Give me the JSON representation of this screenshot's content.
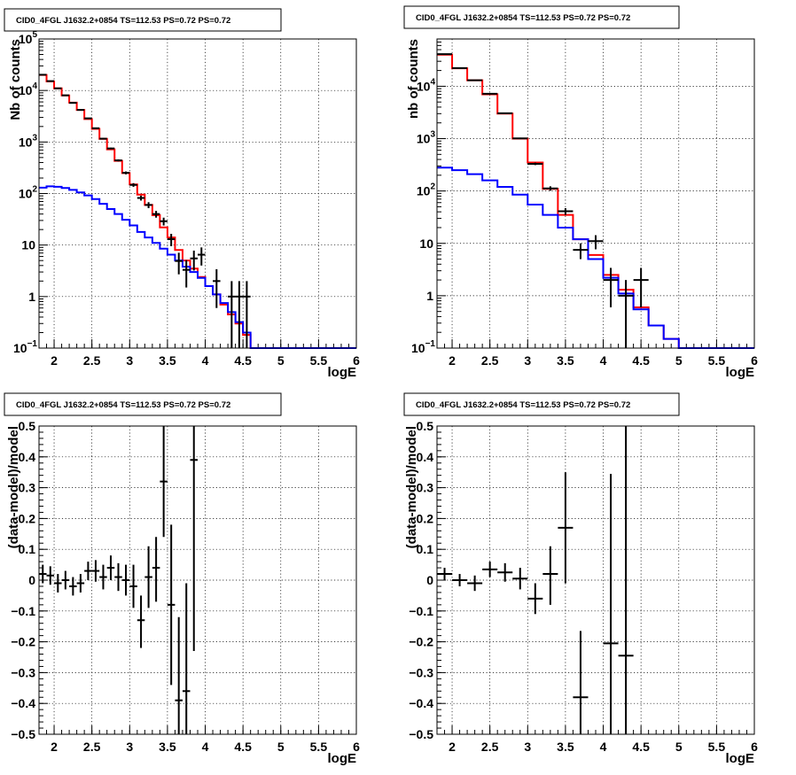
{
  "chart_data": [
    {
      "type": "line",
      "title": "CID0_4FGL J1632.2+0854 TS=112.53 PS=0.72 PS=0.72",
      "xlabel": "logE",
      "ylabel": "Nb of counts",
      "xlim": [
        1.8,
        6
      ],
      "ylim": [
        0.1,
        100000
      ],
      "yscale": "log",
      "grid": true,
      "x_ticks": [
        "2",
        "2.5",
        "3",
        "3.5",
        "4",
        "4.5",
        "5",
        "5.5",
        "6"
      ],
      "y_ticks": [
        "10^-1",
        "1",
        "10",
        "10^2",
        "10^3",
        "10^4",
        "10^5"
      ],
      "bin_width": 0.1,
      "x": [
        1.85,
        1.95,
        2.05,
        2.15,
        2.25,
        2.35,
        2.45,
        2.55,
        2.65,
        2.75,
        2.85,
        2.95,
        3.05,
        3.15,
        3.25,
        3.35,
        3.45,
        3.55,
        3.65,
        3.75,
        3.85,
        3.95,
        4.05,
        4.15,
        4.25,
        4.35,
        4.45,
        4.55,
        4.65,
        4.75,
        4.85,
        4.95,
        5.05,
        5.15,
        5.25,
        5.35,
        5.45,
        5.55,
        5.65,
        5.75,
        5.85,
        5.95
      ],
      "series": [
        {
          "color": "#ff0000",
          "values": [
            20000,
            15000,
            11000,
            8000,
            5800,
            4200,
            2800,
            1800,
            1150,
            720,
            430,
            250,
            150,
            95,
            60,
            38,
            22,
            14,
            8,
            5,
            3.5,
            2.4,
            1.6,
            1.1,
            0.7,
            0.45,
            0.3,
            0.18,
            0.1,
            0.1,
            0.1,
            0.1,
            0.1,
            0.1,
            0.1,
            0.1,
            0.1,
            0.1,
            0.1,
            0.1,
            0.1,
            0.1
          ]
        },
        {
          "color": "#0000ff",
          "values": [
            130,
            138,
            135,
            128,
            118,
            105,
            92,
            78,
            63,
            50,
            40,
            31,
            24,
            18,
            14,
            11,
            8.5,
            6.5,
            5,
            3.8,
            3,
            2.3,
            1.6,
            1.1,
            0.75,
            0.5,
            0.32,
            0.2,
            0.1,
            0.1,
            0.1,
            0.1,
            0.1,
            0.1,
            0.1,
            0.1,
            0.1,
            0.1,
            0.1,
            0.1,
            0.1,
            0.1
          ]
        }
      ],
      "points": [
        {
          "x": 1.85,
          "y": 20200,
          "lo": 20060,
          "hi": 20340
        },
        {
          "x": 1.95,
          "y": 15200,
          "lo": 15080,
          "hi": 15320
        },
        {
          "x": 2.05,
          "y": 11000,
          "lo": 10900,
          "hi": 11100
        },
        {
          "x": 2.15,
          "y": 8050,
          "lo": 7960,
          "hi": 8140
        },
        {
          "x": 2.25,
          "y": 5750,
          "lo": 5675,
          "hi": 5825
        },
        {
          "x": 2.35,
          "y": 4200,
          "lo": 4135,
          "hi": 4265
        },
        {
          "x": 2.45,
          "y": 2880,
          "lo": 2826,
          "hi": 2934
        },
        {
          "x": 2.55,
          "y": 1850,
          "lo": 1807,
          "hi": 1893
        },
        {
          "x": 2.65,
          "y": 1160,
          "lo": 1126,
          "hi": 1194
        },
        {
          "x": 2.75,
          "y": 750,
          "lo": 723,
          "hi": 777
        },
        {
          "x": 2.85,
          "y": 440,
          "lo": 419,
          "hi": 461
        },
        {
          "x": 2.95,
          "y": 252,
          "lo": 236,
          "hi": 268
        },
        {
          "x": 3.05,
          "y": 147,
          "lo": 135,
          "hi": 159
        },
        {
          "x": 3.15,
          "y": 82,
          "lo": 73,
          "hi": 91
        },
        {
          "x": 3.25,
          "y": 60,
          "lo": 52,
          "hi": 68
        },
        {
          "x": 3.35,
          "y": 40,
          "lo": 34,
          "hi": 46
        },
        {
          "x": 3.45,
          "y": 29,
          "lo": 24,
          "hi": 34
        },
        {
          "x": 3.55,
          "y": 13,
          "lo": 9.5,
          "hi": 16.5
        },
        {
          "x": 3.65,
          "y": 4.9,
          "lo": 2.7,
          "hi": 7.1
        },
        {
          "x": 3.75,
          "y": 3.3,
          "lo": 1.5,
          "hi": 5.1
        },
        {
          "x": 3.85,
          "y": 5.5,
          "lo": 3.2,
          "hi": 7.8
        },
        {
          "x": 3.95,
          "y": 6.5,
          "lo": 4.0,
          "hi": 9.0
        },
        {
          "x": 4.15,
          "y": 2.0,
          "lo": 0.6,
          "hi": 3.4
        },
        {
          "x": 4.35,
          "y": 1.0,
          "lo": 0.1,
          "hi": 2.0
        },
        {
          "x": 4.45,
          "y": 1.0,
          "lo": 0.1,
          "hi": 2.0
        },
        {
          "x": 4.55,
          "y": 1.0,
          "lo": 0.1,
          "hi": 2.0
        }
      ]
    },
    {
      "type": "line",
      "title": "CID0_4FGL J1632.2+0854 TS=112.53 PS=0.72 PS=0.72",
      "xlabel": "logE",
      "ylabel": "nb of counts",
      "xlim": [
        1.8,
        6
      ],
      "ylim": [
        0.1,
        80000
      ],
      "yscale": "log",
      "grid": true,
      "x_ticks": [
        "2",
        "2.5",
        "3",
        "3.5",
        "4",
        "4.5",
        "5",
        "5.5",
        "6"
      ],
      "y_ticks": [
        "10^-1",
        "1",
        "10",
        "10^2",
        "10^3",
        "10^4"
      ],
      "bin_width": 0.2,
      "x": [
        1.9,
        2.1,
        2.3,
        2.5,
        2.7,
        2.9,
        3.1,
        3.3,
        3.5,
        3.7,
        3.9,
        4.1,
        4.3,
        4.5,
        4.7,
        4.9,
        5.1,
        5.3,
        5.5,
        5.7,
        5.9
      ],
      "series": [
        {
          "color": "#ff0000",
          "values": [
            40000,
            22000,
            13000,
            7000,
            3000,
            1000,
            350,
            110,
            35,
            12,
            6,
            2.5,
            1.3,
            0.6,
            0.27,
            0.15,
            0.1,
            0.1,
            0.1,
            0.1,
            0.1
          ]
        },
        {
          "color": "#0000ff",
          "values": [
            280,
            250,
            210,
            160,
            120,
            85,
            55,
            35,
            20,
            12,
            5,
            2.2,
            1.1,
            0.55,
            0.27,
            0.15,
            0.1,
            0.1,
            0.1,
            0.1,
            0.1
          ]
        }
      ],
      "points": [
        {
          "x": 1.9,
          "y": 41000,
          "lo": 40800,
          "hi": 41200
        },
        {
          "x": 2.1,
          "y": 22200,
          "lo": 22050,
          "hi": 22350
        },
        {
          "x": 2.3,
          "y": 13000,
          "lo": 12890,
          "hi": 13110
        },
        {
          "x": 2.5,
          "y": 7200,
          "lo": 7115,
          "hi": 7285
        },
        {
          "x": 2.7,
          "y": 3050,
          "lo": 2995,
          "hi": 3105
        },
        {
          "x": 2.9,
          "y": 1010,
          "lo": 978,
          "hi": 1042
        },
        {
          "x": 3.1,
          "y": 330,
          "lo": 312,
          "hi": 348
        },
        {
          "x": 3.3,
          "y": 112,
          "lo": 101,
          "hi": 123
        },
        {
          "x": 3.5,
          "y": 41,
          "lo": 35,
          "hi": 47
        },
        {
          "x": 3.7,
          "y": 7.5,
          "lo": 5,
          "hi": 10
        },
        {
          "x": 3.9,
          "y": 11,
          "lo": 7.7,
          "hi": 14.3
        },
        {
          "x": 4.1,
          "y": 2.0,
          "lo": 0.6,
          "hi": 3.4
        },
        {
          "x": 4.3,
          "y": 1.0,
          "lo": 0.1,
          "hi": 2.0
        },
        {
          "x": 4.5,
          "y": 2.0,
          "lo": 0.6,
          "hi": 3.4
        }
      ]
    },
    {
      "type": "scatter",
      "title": "CID0_4FGL J1632.2+0854 TS=112.53 PS=0.72 PS=0.72",
      "xlabel": "logE",
      "ylabel": "(data-model)/model",
      "xlim": [
        1.8,
        6
      ],
      "ylim": [
        -0.5,
        0.5
      ],
      "grid": true,
      "x_ticks": [
        "2",
        "2.5",
        "3",
        "3.5",
        "4",
        "4.5",
        "5",
        "5.5",
        "6"
      ],
      "y_ticks": [
        "-0.5",
        "-0.4",
        "-0.3",
        "-0.2",
        "-0.1",
        "0",
        "0.1",
        "0.2",
        "0.3",
        "0.4",
        "0.5"
      ],
      "bin_width": 0.1,
      "points": [
        {
          "x": 1.85,
          "y": 0.02,
          "lo": -0.01,
          "hi": 0.05
        },
        {
          "x": 1.95,
          "y": 0.015,
          "lo": -0.015,
          "hi": 0.045
        },
        {
          "x": 2.05,
          "y": -0.01,
          "lo": -0.04,
          "hi": 0.02
        },
        {
          "x": 2.15,
          "y": 0.0,
          "lo": -0.03,
          "hi": 0.03
        },
        {
          "x": 2.25,
          "y": -0.02,
          "lo": -0.05,
          "hi": 0.01
        },
        {
          "x": 2.35,
          "y": -0.01,
          "lo": -0.04,
          "hi": 0.02
        },
        {
          "x": 2.45,
          "y": 0.03,
          "lo": 0.0,
          "hi": 0.06
        },
        {
          "x": 2.55,
          "y": 0.03,
          "lo": -0.005,
          "hi": 0.065
        },
        {
          "x": 2.65,
          "y": 0.01,
          "lo": -0.03,
          "hi": 0.05
        },
        {
          "x": 2.75,
          "y": 0.04,
          "lo": 0.0,
          "hi": 0.08
        },
        {
          "x": 2.85,
          "y": 0.01,
          "lo": -0.035,
          "hi": 0.055
        },
        {
          "x": 2.95,
          "y": 0.0,
          "lo": -0.05,
          "hi": 0.05
        },
        {
          "x": 3.05,
          "y": -0.02,
          "lo": -0.09,
          "hi": 0.05
        },
        {
          "x": 3.15,
          "y": -0.13,
          "lo": -0.22,
          "hi": -0.05
        },
        {
          "x": 3.25,
          "y": 0.01,
          "lo": -0.09,
          "hi": 0.11
        },
        {
          "x": 3.35,
          "y": 0.04,
          "lo": -0.07,
          "hi": 0.14
        },
        {
          "x": 3.45,
          "y": 0.32,
          "lo": 0.14,
          "hi": 0.5
        },
        {
          "x": 3.55,
          "y": -0.08,
          "lo": -0.34,
          "hi": 0.18
        },
        {
          "x": 3.65,
          "y": -0.39,
          "lo": -0.5,
          "hi": -0.12
        },
        {
          "x": 3.75,
          "y": -0.36,
          "lo": -0.5,
          "hi": -0.01
        },
        {
          "x": 3.85,
          "y": 0.39,
          "lo": -0.23,
          "hi": 0.5
        }
      ]
    },
    {
      "type": "scatter",
      "title": "CID0_4FGL J1632.2+0854 TS=112.53 PS=0.72 PS=0.72",
      "xlabel": "logE",
      "ylabel": "(data-model)/model",
      "xlim": [
        1.8,
        6
      ],
      "ylim": [
        -0.5,
        0.5
      ],
      "grid": true,
      "x_ticks": [
        "2",
        "2.5",
        "3",
        "3.5",
        "4",
        "4.5",
        "5",
        "5.5",
        "6"
      ],
      "y_ticks": [
        "-0.5",
        "-0.4",
        "-0.3",
        "-0.2",
        "-0.1",
        "0",
        "0.1",
        "0.2",
        "0.3",
        "0.4",
        "0.5"
      ],
      "bin_width": 0.2,
      "points": [
        {
          "x": 1.9,
          "y": 0.02,
          "lo": 0.0,
          "hi": 0.04
        },
        {
          "x": 2.1,
          "y": 0.0,
          "lo": -0.02,
          "hi": 0.02
        },
        {
          "x": 2.3,
          "y": -0.01,
          "lo": -0.035,
          "hi": 0.015
        },
        {
          "x": 2.5,
          "y": 0.035,
          "lo": 0.01,
          "hi": 0.06
        },
        {
          "x": 2.7,
          "y": 0.025,
          "lo": -0.005,
          "hi": 0.055
        },
        {
          "x": 2.9,
          "y": 0.005,
          "lo": -0.03,
          "hi": 0.04
        },
        {
          "x": 3.1,
          "y": -0.06,
          "lo": -0.11,
          "hi": -0.01
        },
        {
          "x": 3.3,
          "y": 0.02,
          "lo": -0.08,
          "hi": 0.11
        },
        {
          "x": 3.5,
          "y": 0.17,
          "lo": -0.01,
          "hi": 0.35
        },
        {
          "x": 3.7,
          "y": -0.38,
          "lo": -0.5,
          "hi": -0.165
        },
        {
          "x": 4.1,
          "y": -0.205,
          "lo": -0.5,
          "hi": 0.345
        },
        {
          "x": 4.3,
          "y": -0.245,
          "lo": -0.5,
          "hi": 0.5
        }
      ]
    }
  ]
}
